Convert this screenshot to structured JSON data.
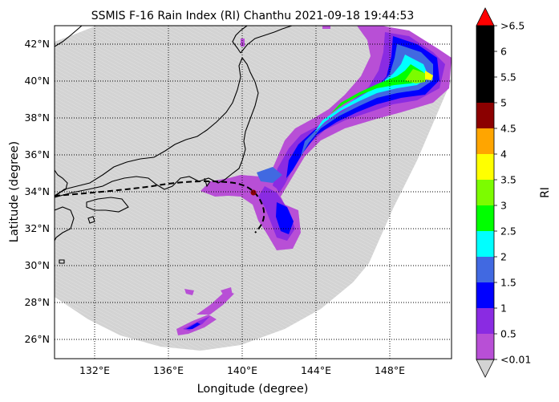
{
  "title": "SSMIS F-16 Rain Index (RI) Chanthu 2021-09-18 19:44:53",
  "map": {
    "xlabel": "Longitude (degree)",
    "ylabel": "Latitude (degree)",
    "lon_range": [
      129.8,
      151.3
    ],
    "lat_range": [
      25.0,
      43.0
    ],
    "x_ticks": [
      "132°E",
      "136°E",
      "140°E",
      "144°E",
      "148°E"
    ],
    "y_ticks": [
      "26°N",
      "28°N",
      "30°N",
      "32°N",
      "34°N",
      "36°N",
      "38°N",
      "40°N",
      "42°N"
    ],
    "swath_color": "#d3d3d3",
    "track_style": "dashed black",
    "storm_center_color": "#8b0000",
    "grid": "dotted"
  },
  "colorbar": {
    "label": "RI",
    "tick_labels": [
      ">6.5",
      "6",
      "5.5",
      "5",
      "4.5",
      "4",
      "3.5",
      "3",
      "2.5",
      "2",
      "1.5",
      "1",
      "0.5",
      "<0.01"
    ],
    "colors_bottom_to_top": [
      "#b84fd6",
      "#8a2be2",
      "#0000ff",
      "#4169e1",
      "#00ffff",
      "#00ff00",
      "#7cfc00",
      "#ffff00",
      "#ffa500",
      "#8b0000",
      "#000000",
      "#000000",
      "#000000"
    ],
    "over_color": "#ff0000",
    "under_color": "#d3d3d3"
  }
}
